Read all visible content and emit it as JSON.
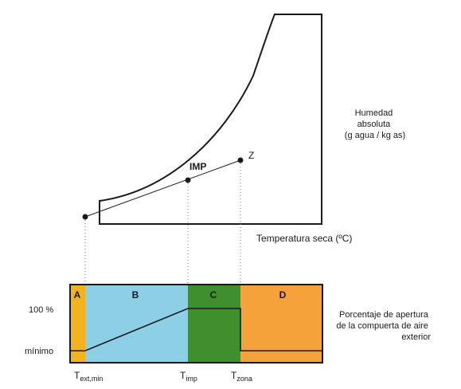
{
  "psychro": {
    "y_axis_label_lines": [
      "Humedad",
      "absoluta",
      "(g agua / kg as)"
    ],
    "x_axis_label": "Temperatura seca (ºC)",
    "point_imp": "IMP",
    "point_z": "Z"
  },
  "damper": {
    "title_lines": [
      "Porcentaje de apertura",
      "de la compuerta de aire",
      "exterior"
    ],
    "y_tick_100": "100 %",
    "y_tick_min": "mínimo",
    "zones": [
      {
        "label": "A",
        "color": "#f3b31f"
      },
      {
        "label": "B",
        "color": "#8ccfe6"
      },
      {
        "label": "C",
        "color": "#3f8f2e"
      },
      {
        "label": "D",
        "color": "#f5a23a"
      }
    ],
    "x_ticks": [
      {
        "main": "T",
        "sub": "ext,min"
      },
      {
        "main": "T",
        "sub": "imp"
      },
      {
        "main": "T",
        "sub": "zona"
      }
    ]
  }
}
